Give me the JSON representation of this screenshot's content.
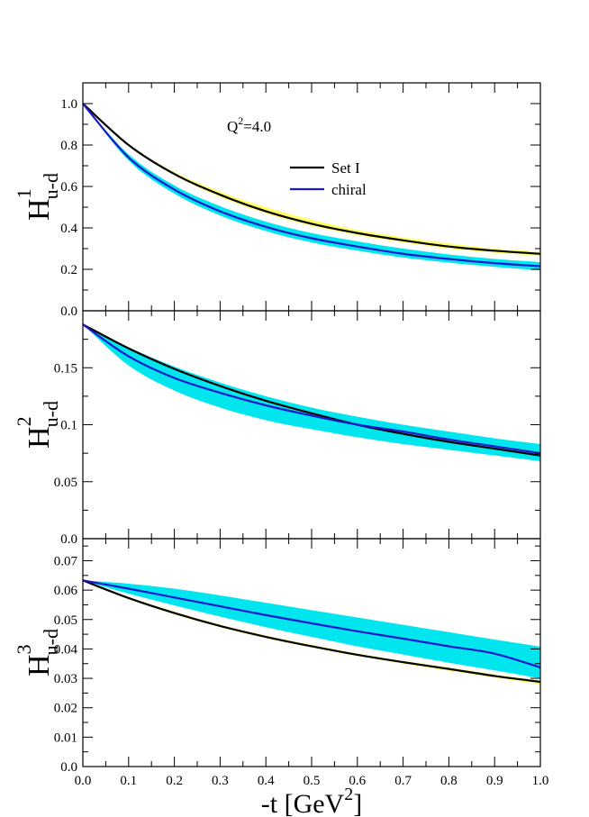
{
  "chart_data": [
    {
      "type": "line",
      "panel": "top",
      "ylabel": {
        "main": "H",
        "sup": "1",
        "sub": "u-d"
      },
      "xlim": [
        0,
        1
      ],
      "ylim": [
        0,
        1.1
      ],
      "x_ticks": [
        0.0,
        0.1,
        0.2,
        0.3,
        0.4,
        0.5,
        0.6,
        0.7,
        0.8,
        0.9,
        1.0
      ],
      "y_ticks": [
        "0.0",
        "0.2",
        "0.4",
        "0.6",
        "0.8",
        "1.0"
      ],
      "y_tick_values": [
        0.0,
        0.2,
        0.4,
        0.6,
        0.8,
        1.0
      ],
      "annotation": {
        "base": "Q",
        "sup": "2",
        "rest": "=4.0"
      },
      "legend": [
        {
          "label": "Set I",
          "color": "#000000"
        },
        {
          "label": "chiral",
          "color": "#1a1acc"
        }
      ],
      "x": [
        0.0,
        0.1,
        0.2,
        0.3,
        0.4,
        0.5,
        0.6,
        0.7,
        0.8,
        0.9,
        1.0
      ],
      "series": [
        {
          "name": "Set I",
          "color": "#000000",
          "values": [
            1.0,
            0.8,
            0.66,
            0.56,
            0.48,
            0.42,
            0.375,
            0.34,
            0.31,
            0.29,
            0.275
          ]
        },
        {
          "name": "chiral",
          "color": "#1a1acc",
          "values": [
            1.0,
            0.74,
            0.585,
            0.48,
            0.405,
            0.35,
            0.31,
            0.275,
            0.25,
            0.23,
            0.215
          ]
        }
      ],
      "bands": [
        {
          "color": "#ffff66",
          "lower": [
            1.0,
            0.8,
            0.655,
            0.55,
            0.47,
            0.41,
            0.365,
            0.33,
            0.3,
            0.28,
            0.265
          ],
          "upper": [
            1.0,
            0.805,
            0.67,
            0.575,
            0.5,
            0.44,
            0.39,
            0.355,
            0.325,
            0.3,
            0.285
          ]
        },
        {
          "color": "#00e5ee",
          "lower": [
            1.0,
            0.725,
            0.565,
            0.46,
            0.385,
            0.33,
            0.29,
            0.257,
            0.232,
            0.212,
            0.195
          ],
          "upper": [
            1.0,
            0.755,
            0.605,
            0.505,
            0.43,
            0.375,
            0.335,
            0.3,
            0.272,
            0.25,
            0.235
          ]
        }
      ]
    },
    {
      "type": "line",
      "panel": "middle",
      "ylabel": {
        "main": "H",
        "sup": "2",
        "sub": "u-d"
      },
      "xlim": [
        0,
        1
      ],
      "ylim": [
        0,
        0.2
      ],
      "x_ticks": [
        0.0,
        0.1,
        0.2,
        0.3,
        0.4,
        0.5,
        0.6,
        0.7,
        0.8,
        0.9,
        1.0
      ],
      "y_ticks": [
        "0.0",
        "0.05",
        "0.1",
        "0.15"
      ],
      "y_tick_values": [
        0.0,
        0.05,
        0.1,
        0.15
      ],
      "x": [
        0.0,
        0.1,
        0.2,
        0.3,
        0.4,
        0.5,
        0.6,
        0.7,
        0.8,
        0.9,
        1.0
      ],
      "series": [
        {
          "name": "Set I",
          "color": "#000000",
          "values": [
            0.188,
            0.167,
            0.149,
            0.134,
            0.121,
            0.11,
            0.1,
            0.092,
            0.085,
            0.079,
            0.073
          ]
        },
        {
          "name": "chiral",
          "color": "#1a1acc",
          "values": [
            0.188,
            0.16,
            0.141,
            0.128,
            0.117,
            0.108,
            0.1,
            0.094,
            0.087,
            0.081,
            0.075
          ]
        }
      ],
      "bands": [
        {
          "color": "#00e5ee",
          "lower": [
            0.188,
            0.152,
            0.13,
            0.115,
            0.104,
            0.096,
            0.089,
            0.083,
            0.078,
            0.073,
            0.068
          ],
          "upper": [
            0.188,
            0.168,
            0.151,
            0.137,
            0.125,
            0.115,
            0.107,
            0.1,
            0.094,
            0.088,
            0.083
          ]
        }
      ]
    },
    {
      "type": "line",
      "panel": "bottom",
      "ylabel": {
        "main": "H",
        "sup": "3",
        "sub": "u-d"
      },
      "xlim": [
        0,
        1
      ],
      "ylim": [
        0,
        0.0775
      ],
      "x_ticks": [
        0.0,
        0.1,
        0.2,
        0.3,
        0.4,
        0.5,
        0.6,
        0.7,
        0.8,
        0.9,
        1.0
      ],
      "x_tick_labels": [
        "0.0",
        "0.1",
        "0.2",
        "0.3",
        "0.4",
        "0.5",
        "0.6",
        "0.7",
        "0.8",
        "0.9",
        "1.0"
      ],
      "y_ticks": [
        "0.0",
        "0.01",
        "0.02",
        "0.03",
        "0.04",
        "0.05",
        "0.06",
        "0.07"
      ],
      "y_tick_values": [
        0.0,
        0.01,
        0.02,
        0.03,
        0.04,
        0.05,
        0.06,
        0.07
      ],
      "xlabel": {
        "text": "-t [GeV",
        "sup": "2",
        "close": "]"
      },
      "x": [
        0.0,
        0.1,
        0.2,
        0.3,
        0.4,
        0.5,
        0.6,
        0.7,
        0.8,
        0.9,
        1.0
      ],
      "series": [
        {
          "name": "Set I",
          "color": "#000000",
          "values": [
            0.0633,
            0.0573,
            0.0522,
            0.0478,
            0.0441,
            0.0409,
            0.038,
            0.0355,
            0.0332,
            0.0308,
            0.0288
          ]
        },
        {
          "name": "chiral",
          "color": "#1a1acc",
          "values": [
            0.0633,
            0.0605,
            0.0575,
            0.0545,
            0.0515,
            0.0487,
            0.046,
            0.0435,
            0.0409,
            0.0384,
            0.0337
          ]
        }
      ],
      "bands": [
        {
          "color": "#ffff66",
          "lower": [
            0.0633,
            0.057,
            0.0518,
            0.0474,
            0.0437,
            0.0405,
            0.0376,
            0.035,
            0.0326,
            0.0303,
            0.028
          ],
          "upper": [
            0.0633,
            0.0577,
            0.0527,
            0.0483,
            0.0446,
            0.0414,
            0.0385,
            0.036,
            0.0337,
            0.0314,
            0.0292
          ]
        },
        {
          "color": "#00e5ee",
          "lower": [
            0.0633,
            0.0588,
            0.0548,
            0.051,
            0.0474,
            0.0441,
            0.0409,
            0.0381,
            0.0353,
            0.0327,
            0.03
          ],
          "upper": [
            0.0633,
            0.0622,
            0.0605,
            0.0582,
            0.0557,
            0.0532,
            0.0507,
            0.0482,
            0.0457,
            0.0432,
            0.0408
          ]
        }
      ]
    }
  ]
}
